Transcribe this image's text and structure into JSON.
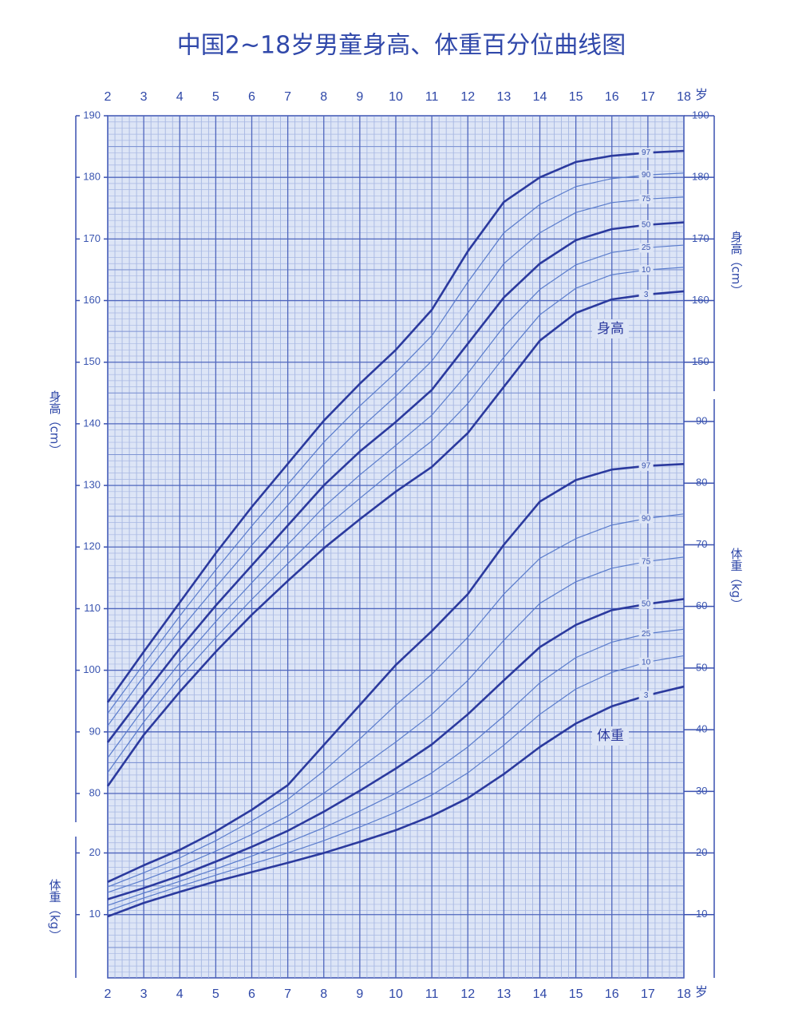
{
  "chart_data": {
    "type": "line",
    "title": "中国2~18岁男童身高、体重百分位曲线图",
    "x": [
      2,
      3,
      4,
      5,
      6,
      7,
      8,
      9,
      10,
      11,
      12,
      13,
      14,
      15,
      16,
      17,
      18
    ],
    "xlim": [
      2,
      18
    ],
    "xticks": [
      2,
      3,
      4,
      5,
      6,
      7,
      8,
      9,
      10,
      11,
      12,
      13,
      14,
      15,
      16,
      17,
      18
    ],
    "x_unit": "岁",
    "y_label": "身高（cm）",
    "ylim": [
      80,
      190
    ],
    "yticks": [
      80,
      90,
      100,
      110,
      120,
      130,
      140,
      150,
      160,
      170,
      180,
      190
    ],
    "yticks_right": [
      150,
      160,
      170,
      180,
      190
    ],
    "y2_label": "体重（kg）",
    "y2lim": [
      0,
      90
    ],
    "y2ticks": [
      10,
      20,
      30,
      40,
      50,
      60,
      70,
      80,
      90
    ],
    "y2ticks_left": [
      10,
      20
    ],
    "annotations": [
      "身高",
      "体重"
    ],
    "grid": true,
    "series": [
      {
        "name": "97",
        "color": "#2b3a9e",
        "bold": true,
        "values": [
          94.8,
          103,
          111,
          119,
          126.5,
          133.5,
          140.5,
          146.5,
          152,
          158.5,
          168,
          176,
          180,
          182.5,
          183.5,
          184,
          184.3
        ]
      },
      {
        "name": "90",
        "color": "#5a7ccc",
        "bold": false,
        "values": [
          93,
          101,
          108.8,
          116.3,
          123.4,
          130.2,
          137,
          142.9,
          148.3,
          154.3,
          163,
          171,
          175.6,
          178.5,
          179.8,
          180.4,
          180.7
        ]
      },
      {
        "name": "75",
        "color": "#5a7ccc",
        "bold": false,
        "values": [
          91,
          99,
          106.5,
          113.5,
          120.3,
          126.8,
          133.4,
          139.2,
          144.5,
          150.2,
          158,
          166,
          171,
          174.3,
          175.9,
          176.5,
          176.8
        ]
      },
      {
        "name": "50",
        "color": "#2b3a9e",
        "bold": true,
        "values": [
          88.3,
          96,
          103.5,
          110.5,
          117,
          123.5,
          130,
          135.5,
          140.3,
          145.5,
          153,
          160.5,
          166,
          169.8,
          171.6,
          172.3,
          172.7
        ]
      },
      {
        "name": "25",
        "color": "#5a7ccc",
        "bold": false,
        "values": [
          85.8,
          93.8,
          101.2,
          107.9,
          114.2,
          120.4,
          126.5,
          131.7,
          136.5,
          141.4,
          148.2,
          155.8,
          161.8,
          165.8,
          167.8,
          168.6,
          169
        ]
      },
      {
        "name": "10",
        "color": "#5a7ccc",
        "bold": false,
        "values": [
          83.4,
          91.6,
          98.8,
          105.3,
          111.5,
          117.3,
          123,
          127.9,
          132.7,
          137.2,
          143.3,
          150.8,
          157.7,
          162,
          164.2,
          165,
          165.4
        ]
      },
      {
        "name": "3",
        "color": "#2b3a9e",
        "bold": true,
        "values": [
          81.2,
          89.5,
          96.5,
          103,
          109,
          114.5,
          119.8,
          124.5,
          129,
          133,
          138.5,
          146,
          153.5,
          158,
          160.2,
          161,
          161.5
        ]
      },
      {
        "name": "97",
        "color": "#2b3a9e",
        "bold": true,
        "axis": "y2",
        "values": [
          15.3,
          18,
          20.5,
          23.5,
          27,
          31,
          37.5,
          44,
          50.5,
          56,
          62,
          70,
          77,
          80.5,
          82.2,
          82.8,
          83.1
        ]
      },
      {
        "name": "90",
        "color": "#5a7ccc",
        "bold": false,
        "axis": "y2",
        "values": [
          14.5,
          16.8,
          19.2,
          22,
          25.2,
          28.7,
          33.3,
          38.5,
          44,
          49,
          55,
          62,
          67.8,
          71,
          73.2,
          74.3,
          75
        ]
      },
      {
        "name": "75",
        "color": "#5a7ccc",
        "bold": false,
        "axis": "y2",
        "values": [
          13.6,
          15.6,
          17.8,
          20.3,
          23,
          26,
          29.7,
          33.8,
          38,
          42.5,
          48,
          54.5,
          60.5,
          64,
          66.2,
          67.3,
          68
        ]
      },
      {
        "name": "50",
        "color": "#2b3a9e",
        "bold": true,
        "axis": "y2",
        "values": [
          12.5,
          14.3,
          16.3,
          18.6,
          21,
          23.6,
          26.7,
          30.1,
          33.7,
          37.6,
          42.5,
          48,
          53.4,
          57,
          59.4,
          60.4,
          61.2
        ]
      },
      {
        "name": "25",
        "color": "#5a7ccc",
        "bold": false,
        "axis": "y2",
        "values": [
          11.5,
          13.5,
          15.4,
          17.4,
          19.5,
          21.7,
          24.1,
          26.8,
          29.7,
          33,
          37.2,
          42.2,
          47.6,
          51.7,
          54.2,
          55.6,
          56.3
        ]
      },
      {
        "name": "10",
        "color": "#5a7ccc",
        "bold": false,
        "axis": "y2",
        "values": [
          10.6,
          12.7,
          14.6,
          16.4,
          18.2,
          20,
          22,
          24.2,
          26.6,
          29.4,
          33,
          37.5,
          42.5,
          46.6,
          49.3,
          51,
          52
        ]
      },
      {
        "name": "3",
        "color": "#2b3a9e",
        "bold": true,
        "axis": "y2",
        "values": [
          9.7,
          11.9,
          13.7,
          15.4,
          16.9,
          18.4,
          20,
          21.8,
          23.7,
          26,
          28.9,
          32.8,
          37.2,
          41,
          43.8,
          45.6,
          47
        ]
      }
    ]
  }
}
